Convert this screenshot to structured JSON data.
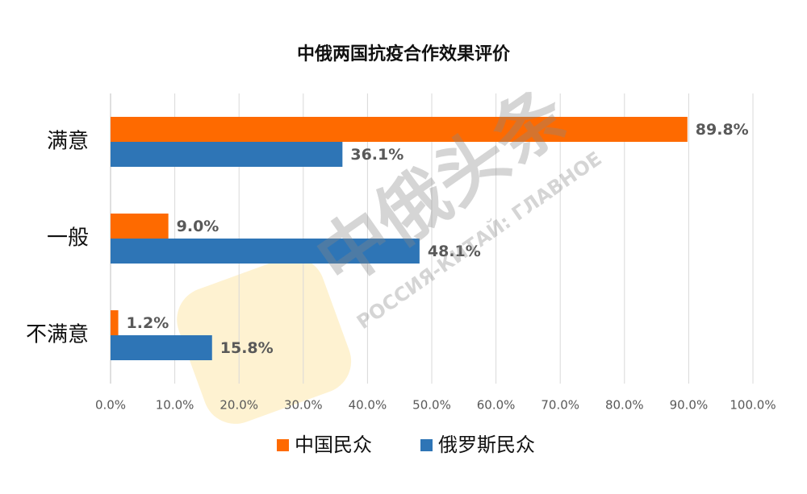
{
  "chart_data": {
    "type": "bar",
    "orientation": "horizontal",
    "title": "中俄两国抗疫合作效果评价",
    "categories": [
      "满意",
      "一般",
      "不满意"
    ],
    "series": [
      {
        "name": "中国民众",
        "color": "#fe6a00",
        "values": [
          89.8,
          9.0,
          1.2
        ],
        "value_labels": [
          "89.8%",
          "9.0%",
          "1.2%"
        ]
      },
      {
        "name": "俄罗斯民众",
        "color": "#2e75b6",
        "values": [
          36.1,
          48.1,
          15.8
        ],
        "value_labels": [
          "36.1%",
          "48.1%",
          "15.8%"
        ]
      }
    ],
    "xlim": [
      0,
      100
    ],
    "xticks": [
      {
        "value": 0,
        "label": "0.0%"
      },
      {
        "value": 10,
        "label": "10.0%"
      },
      {
        "value": 20,
        "label": "20.0%"
      },
      {
        "value": 30,
        "label": "30.0%"
      },
      {
        "value": 40,
        "label": "40.0%"
      },
      {
        "value": 50,
        "label": "50.0%"
      },
      {
        "value": 60,
        "label": "60.0%"
      },
      {
        "value": 70,
        "label": "70.0%"
      },
      {
        "value": 80,
        "label": "80.0%"
      },
      {
        "value": 90,
        "label": "90.0%"
      },
      {
        "value": 100,
        "label": "100.0%"
      }
    ],
    "grid": true,
    "legend": "bottom",
    "watermark": {
      "title": "中俄头条",
      "subtitle": "РОССИЯ-КИТАЙ: ГЛАВНОЕ"
    }
  }
}
